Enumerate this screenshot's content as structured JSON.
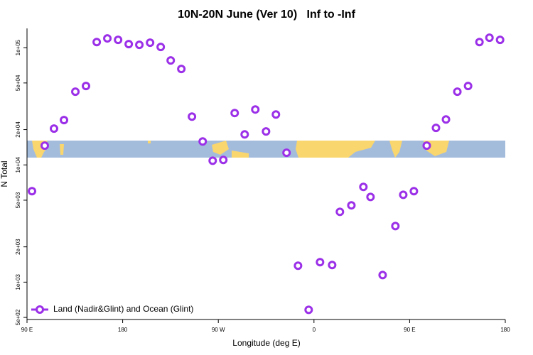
{
  "chart_data": {
    "type": "scatter",
    "title": "10N-20N June (Ver 10)   Inf to -Inf",
    "x_label": "Longitude (deg E)",
    "y_label": "N Total",
    "log_y": true,
    "grid": false,
    "legend_position": "bottom-left",
    "xlim": [
      90,
      540
    ],
    "ylim": [
      480,
      146000
    ],
    "xticks": [
      {
        "value": 90,
        "label": "90 E"
      },
      180,
      {
        "value": 270,
        "label": "90 W"
      },
      {
        "value": 360,
        "label": "0"
      },
      {
        "value": 450,
        "label": "90 E"
      },
      {
        "value": 540,
        "label": "180"
      }
    ],
    "yticks": [
      {
        "value": 500,
        "label": "5e+02"
      },
      {
        "value": 1000,
        "label": "1e+03"
      },
      {
        "value": 2000,
        "label": "2e+03"
      },
      {
        "value": 5000,
        "label": "5e+03"
      },
      {
        "value": 10000,
        "label": "1e+04"
      },
      {
        "value": 20000,
        "label": "2e+04"
      },
      {
        "value": 50000,
        "label": "5e+04"
      },
      {
        "value": 100000,
        "label": "1e+05"
      }
    ],
    "series": [
      {
        "name": "Land (Nadir&Glint) and Ocean (Glint)",
        "color": "#9b30e8",
        "x": [
          94.7,
          106.7,
          115.4,
          124.8,
          135.5,
          145.5,
          155.6,
          165.6,
          175.7,
          185.7,
          195.7,
          205.8,
          215.8,
          225.2,
          235.2,
          245.2,
          255.3,
          264.7,
          274.7,
          285.4,
          294.8,
          304.8,
          314.9,
          324.2,
          334.2,
          345.0,
          355.0,
          365.7,
          377.1,
          384.4,
          395.2,
          406.5,
          413.2,
          424.6,
          436.6,
          444.0,
          454.0,
          466.1,
          474.8,
          484.2,
          494.9,
          505.0,
          515.7,
          525.1,
          535.1
        ],
        "values": [
          5970,
          14600,
          20400,
          24100,
          42100,
          47100,
          111700,
          120000,
          116600,
          107200,
          105800,
          110300,
          101400,
          77800,
          65800,
          25800,
          15850,
          10860,
          11020,
          27700,
          18200,
          29700,
          19300,
          26900,
          12700,
          1380,
          580,
          1480,
          1400,
          3980,
          4520,
          6490,
          5330,
          1150,
          3010,
          5560,
          5970,
          14600,
          20700,
          24400,
          42100,
          47100,
          111700,
          121600,
          116600
        ]
      }
    ]
  }
}
